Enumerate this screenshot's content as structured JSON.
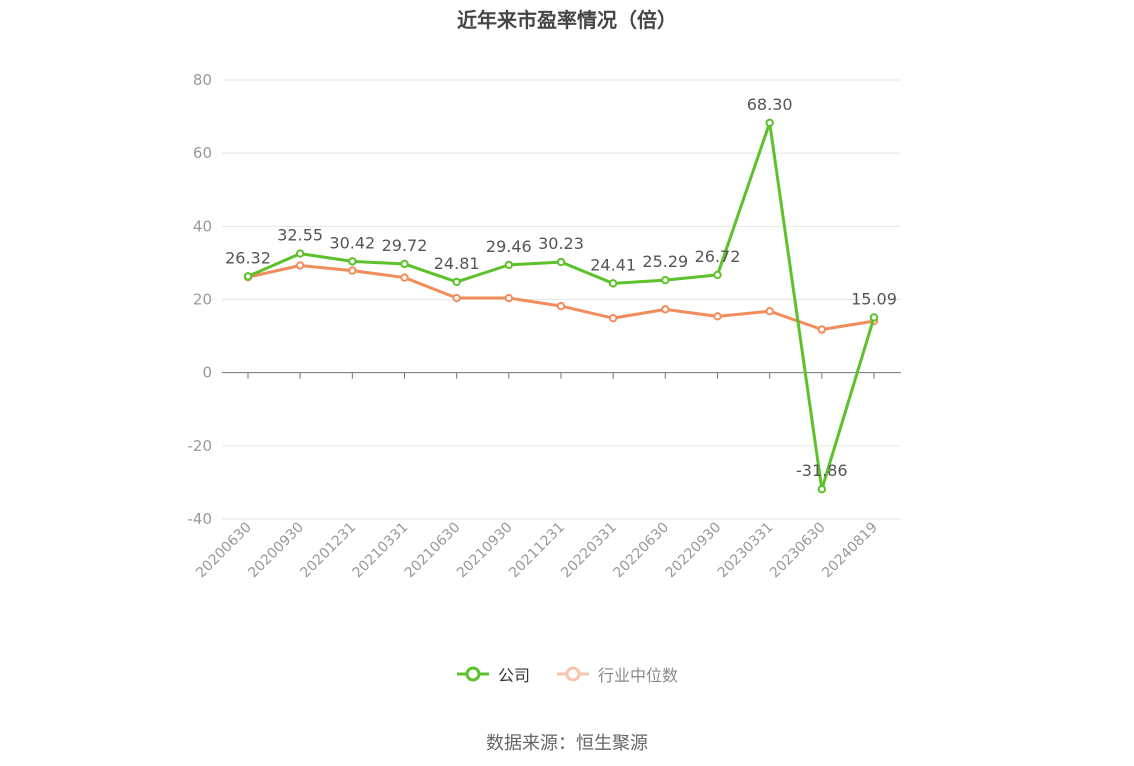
{
  "chart_data": {
    "type": "line",
    "title": "近年来市盈率情况（倍）",
    "categories": [
      "20200630",
      "20200930",
      "20201231",
      "20210331",
      "20210630",
      "20210930",
      "20211231",
      "20220331",
      "20220630",
      "20220930",
      "20230331",
      "20230630",
      "20240819"
    ],
    "series": [
      {
        "name": "公司",
        "color": "#5cc12b",
        "values": [
          26.32,
          32.55,
          30.42,
          29.72,
          24.81,
          29.46,
          30.23,
          24.41,
          25.29,
          26.72,
          68.3,
          -31.86,
          15.09
        ],
        "labels": [
          "26.32",
          "32.55",
          "30.42",
          "29.72",
          "24.81",
          "29.46",
          "30.23",
          "24.41",
          "25.29",
          "26.72",
          "68.30",
          "-31.86",
          "15.09"
        ]
      },
      {
        "name": "行业中位数",
        "color": "#f28c5c",
        "values": [
          26.1,
          29.3,
          27.9,
          26.0,
          20.4,
          20.4,
          18.2,
          14.9,
          17.3,
          15.4,
          16.8,
          11.8,
          14.1
        ]
      }
    ],
    "y_ticks": [
      "80",
      "60",
      "40",
      "20",
      "0",
      "-20",
      "-40"
    ],
    "ylim": [
      -40,
      80
    ],
    "grid": true,
    "legend_position": "bottom"
  },
  "source": "数据来源：恒生聚源"
}
